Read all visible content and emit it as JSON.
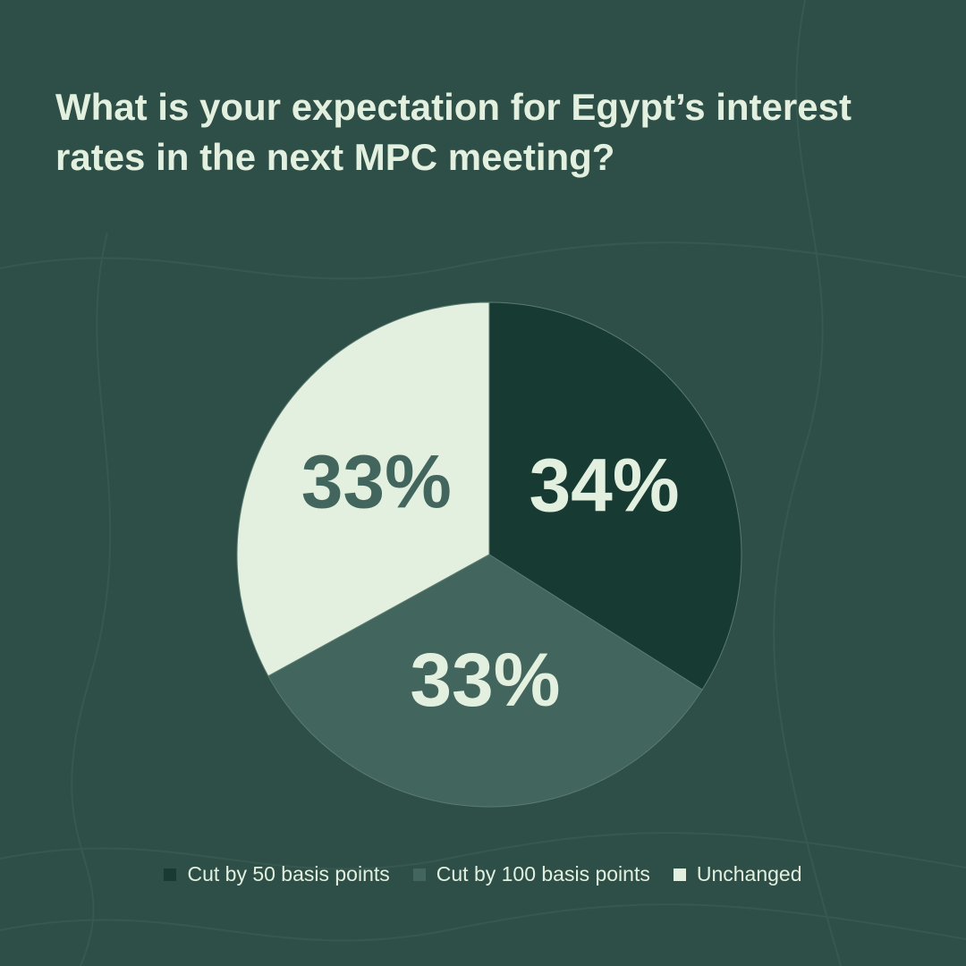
{
  "chart_data": {
    "type": "pie",
    "title": "What is your expectation for Egypt’s interest rates in the next MPC meeting?",
    "categories": [
      "Cut by 50 basis points",
      "Cut by 100 basis points",
      "Unchanged"
    ],
    "values": [
      34,
      33,
      33
    ],
    "value_labels": [
      "34%",
      "33%",
      "33%"
    ],
    "colors": [
      "#173b33",
      "#42665d",
      "#e3f0df"
    ]
  }
}
